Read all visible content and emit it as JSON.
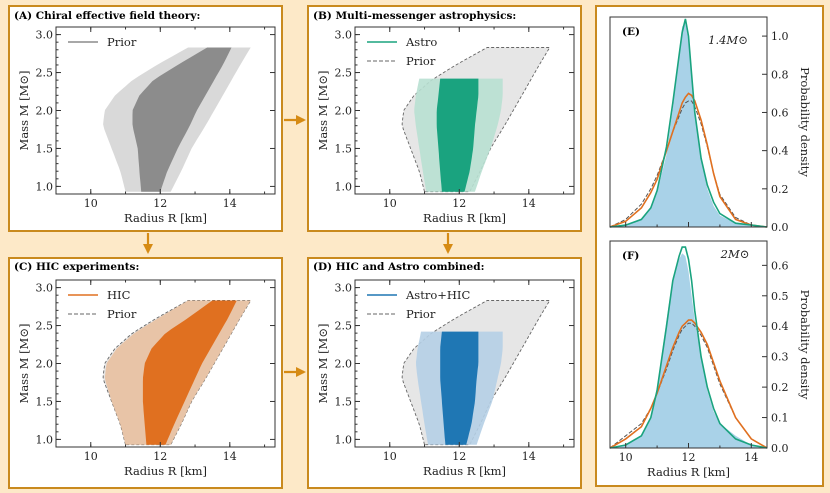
{
  "colors": {
    "background": "#fde9c8",
    "panel_border": "#c98a1e",
    "arrow": "#d68b14",
    "prior_inner": "#8c8c8c",
    "prior_outer": "#d9d9d9",
    "astro": "#1aa37f",
    "astro_light": "#b8e0d2",
    "hic": "#e07020",
    "hic_light": "#e8c0a0",
    "combined": "#1f77b4",
    "combined_light": "#b5cfe6",
    "hist": "#a9d2e8",
    "green_curve": "#1aa37f",
    "orange_curve": "#e07020"
  },
  "chart_data": [
    {
      "id": "A",
      "type": "area",
      "title": "(A) Chiral effective field theory:",
      "xlabel": "Radius R [km]",
      "ylabel": "Mass M [M⊙]",
      "xlim": [
        9,
        15.3
      ],
      "ylim": [
        0.9,
        3.1
      ],
      "xticks": [
        "10",
        "12",
        "14"
      ],
      "yticks": [
        "1.0",
        "1.5",
        "2.0",
        "2.5",
        "3.0"
      ],
      "legend": [
        {
          "label": "Prior",
          "style": "solid-line"
        }
      ],
      "bands": [
        {
          "name": "Prior 95%",
          "mmax": 2.83,
          "left": [
            [
              0.93,
              11.0
            ],
            [
              1.2,
              10.85
            ],
            [
              1.5,
              10.6
            ],
            [
              1.8,
              10.35
            ],
            [
              2.0,
              10.4
            ],
            [
              2.2,
              10.7
            ],
            [
              2.4,
              11.2
            ],
            [
              2.6,
              11.9
            ],
            [
              2.83,
              12.8
            ]
          ],
          "right": [
            [
              0.93,
              12.3
            ],
            [
              1.2,
              12.6
            ],
            [
              1.5,
              12.9
            ],
            [
              1.8,
              13.3
            ],
            [
              2.0,
              13.55
            ],
            [
              2.2,
              13.8
            ],
            [
              2.4,
              14.05
            ],
            [
              2.6,
              14.3
            ],
            [
              2.83,
              14.6
            ]
          ]
        },
        {
          "name": "Prior 68%",
          "mmax": 2.83,
          "left": [
            [
              0.93,
              11.45
            ],
            [
              1.2,
              11.4
            ],
            [
              1.5,
              11.35
            ],
            [
              1.8,
              11.2
            ],
            [
              2.0,
              11.2
            ],
            [
              2.2,
              11.4
            ],
            [
              2.4,
              11.8
            ],
            [
              2.6,
              12.5
            ],
            [
              2.83,
              13.35
            ]
          ],
          "right": [
            [
              0.93,
              12.0
            ],
            [
              1.2,
              12.2
            ],
            [
              1.5,
              12.5
            ],
            [
              1.8,
              12.85
            ],
            [
              2.0,
              13.05
            ],
            [
              2.2,
              13.3
            ],
            [
              2.4,
              13.55
            ],
            [
              2.6,
              13.8
            ],
            [
              2.83,
              14.05
            ]
          ]
        }
      ]
    },
    {
      "id": "B",
      "type": "area",
      "title": "(B) Multi-messenger astrophysics:",
      "xlabel": "Radius R [km]",
      "ylabel": "Mass M [M⊙]",
      "xlim": [
        9,
        15.3
      ],
      "ylim": [
        0.9,
        3.1
      ],
      "xticks": [
        "10",
        "12",
        "14"
      ],
      "yticks": [
        "1.0",
        "1.5",
        "2.0",
        "2.5",
        "3.0"
      ],
      "legend": [
        {
          "label": "Astro",
          "style": "solid-line"
        },
        {
          "label": "Prior",
          "style": "dashed-line"
        }
      ],
      "bands": [
        {
          "name": "Astro 95%",
          "mmax": 2.42,
          "left": [
            [
              0.93,
              11.05
            ],
            [
              1.2,
              10.95
            ],
            [
              1.5,
              10.85
            ],
            [
              1.8,
              10.75
            ],
            [
              2.0,
              10.7
            ],
            [
              2.2,
              10.75
            ],
            [
              2.42,
              10.85
            ]
          ],
          "right": [
            [
              0.93,
              12.45
            ],
            [
              1.2,
              12.65
            ],
            [
              1.5,
              12.9
            ],
            [
              1.8,
              13.1
            ],
            [
              2.0,
              13.2
            ],
            [
              2.2,
              13.25
            ],
            [
              2.42,
              13.25
            ]
          ]
        },
        {
          "name": "Astro 68%",
          "mmax": 2.42,
          "left": [
            [
              0.93,
              11.5
            ],
            [
              1.2,
              11.45
            ],
            [
              1.5,
              11.4
            ],
            [
              1.8,
              11.35
            ],
            [
              2.0,
              11.35
            ],
            [
              2.2,
              11.4
            ],
            [
              2.42,
              11.45
            ]
          ],
          "right": [
            [
              0.93,
              12.15
            ],
            [
              1.2,
              12.3
            ],
            [
              1.5,
              12.4
            ],
            [
              1.8,
              12.45
            ],
            [
              2.0,
              12.5
            ],
            [
              2.2,
              12.55
            ],
            [
              2.42,
              12.55
            ]
          ]
        }
      ]
    },
    {
      "id": "C",
      "type": "area",
      "title": "(C) HIC experiments:",
      "xlabel": "Radius R [km]",
      "ylabel": "Mass M [M⊙]",
      "xlim": [
        9,
        15.3
      ],
      "ylim": [
        0.9,
        3.1
      ],
      "xticks": [
        "10",
        "12",
        "14"
      ],
      "yticks": [
        "1.0",
        "1.5",
        "2.0",
        "2.5",
        "3.0"
      ],
      "legend": [
        {
          "label": "HIC",
          "style": "solid-line"
        },
        {
          "label": "Prior",
          "style": "dashed-line"
        }
      ],
      "bands": [
        {
          "name": "HIC 95%",
          "mmax": 2.83,
          "left": [
            [
              0.93,
              11.0
            ],
            [
              1.2,
              10.85
            ],
            [
              1.5,
              10.6
            ],
            [
              1.8,
              10.4
            ],
            [
              2.0,
              10.45
            ],
            [
              2.2,
              10.75
            ],
            [
              2.4,
              11.25
            ],
            [
              2.6,
              11.95
            ],
            [
              2.83,
              12.8
            ]
          ],
          "right": [
            [
              0.93,
              12.3
            ],
            [
              1.2,
              12.6
            ],
            [
              1.5,
              12.9
            ],
            [
              1.8,
              13.3
            ],
            [
              2.0,
              13.55
            ],
            [
              2.2,
              13.8
            ],
            [
              2.4,
              14.05
            ],
            [
              2.6,
              14.3
            ],
            [
              2.83,
              14.6
            ]
          ]
        },
        {
          "name": "HIC 68%",
          "mmax": 2.83,
          "left": [
            [
              0.93,
              11.6
            ],
            [
              1.2,
              11.55
            ],
            [
              1.5,
              11.5
            ],
            [
              1.8,
              11.5
            ],
            [
              2.0,
              11.55
            ],
            [
              2.2,
              11.75
            ],
            [
              2.4,
              12.15
            ],
            [
              2.6,
              12.8
            ],
            [
              2.83,
              13.5
            ]
          ],
          "right": [
            [
              0.93,
              12.15
            ],
            [
              1.2,
              12.4
            ],
            [
              1.5,
              12.7
            ],
            [
              1.8,
              13.0
            ],
            [
              2.0,
              13.2
            ],
            [
              2.2,
              13.45
            ],
            [
              2.4,
              13.7
            ],
            [
              2.6,
              13.95
            ],
            [
              2.83,
              14.2
            ]
          ]
        }
      ]
    },
    {
      "id": "D",
      "type": "area",
      "title": "(D) HIC and Astro combined:",
      "xlabel": "Radius R [km]",
      "ylabel": "Mass M [M⊙]",
      "xlim": [
        9,
        15.3
      ],
      "ylim": [
        0.9,
        3.1
      ],
      "xticks": [
        "10",
        "12",
        "14"
      ],
      "yticks": [
        "1.0",
        "1.5",
        "2.0",
        "2.5",
        "3.0"
      ],
      "legend": [
        {
          "label": "Astro+HIC",
          "style": "solid-line"
        },
        {
          "label": "Prior",
          "style": "dashed-line"
        }
      ],
      "bands": [
        {
          "name": "Astro+HIC 95%",
          "mmax": 2.42,
          "left": [
            [
              0.93,
              11.1
            ],
            [
              1.2,
              11.0
            ],
            [
              1.5,
              10.9
            ],
            [
              1.8,
              10.8
            ],
            [
              2.0,
              10.75
            ],
            [
              2.2,
              10.8
            ],
            [
              2.42,
              10.9
            ]
          ],
          "right": [
            [
              0.93,
              12.5
            ],
            [
              1.2,
              12.7
            ],
            [
              1.5,
              12.95
            ],
            [
              1.8,
              13.1
            ],
            [
              2.0,
              13.2
            ],
            [
              2.2,
              13.25
            ],
            [
              2.42,
              13.25
            ]
          ]
        },
        {
          "name": "Astro+HIC 68%",
          "mmax": 2.42,
          "left": [
            [
              0.93,
              11.6
            ],
            [
              1.2,
              11.55
            ],
            [
              1.5,
              11.5
            ],
            [
              1.8,
              11.45
            ],
            [
              2.0,
              11.45
            ],
            [
              2.2,
              11.45
            ],
            [
              2.42,
              11.5
            ]
          ],
          "right": [
            [
              0.93,
              12.2
            ],
            [
              1.2,
              12.35
            ],
            [
              1.5,
              12.45
            ],
            [
              1.8,
              12.5
            ],
            [
              2.0,
              12.55
            ],
            [
              2.2,
              12.55
            ],
            [
              2.42,
              12.55
            ]
          ]
        }
      ]
    },
    {
      "id": "E",
      "type": "area",
      "title": "(E)",
      "annotation": "1.4M⊙",
      "xlabel": "",
      "ylabel": "Probability density",
      "xlim": [
        9.5,
        14.5
      ],
      "ylim": [
        0,
        1.1
      ],
      "xticks": [],
      "yticks": [
        "0.0",
        "0.2",
        "0.4",
        "0.6",
        "0.8",
        "1.0"
      ],
      "x": [
        9.5,
        10.0,
        10.5,
        10.8,
        11.0,
        11.3,
        11.5,
        11.7,
        11.8,
        11.9,
        12.0,
        12.1,
        12.2,
        12.4,
        12.6,
        12.8,
        13.0,
        13.5,
        14.0,
        14.5
      ],
      "series": [
        {
          "name": "histogram (Astro+HIC)",
          "values": [
            0,
            0.01,
            0.04,
            0.1,
            0.18,
            0.38,
            0.62,
            0.92,
            1.05,
            1.07,
            0.98,
            0.8,
            0.62,
            0.36,
            0.2,
            0.11,
            0.06,
            0.02,
            0.005,
            0
          ]
        },
        {
          "name": "Astro (green)",
          "values": [
            0,
            0.01,
            0.04,
            0.1,
            0.19,
            0.42,
            0.65,
            0.9,
            1.02,
            1.09,
            1.0,
            0.8,
            0.6,
            0.36,
            0.22,
            0.13,
            0.07,
            0.02,
            0.01,
            0
          ]
        },
        {
          "name": "HIC (orange)",
          "values": [
            0,
            0.03,
            0.1,
            0.18,
            0.25,
            0.4,
            0.5,
            0.6,
            0.65,
            0.68,
            0.7,
            0.69,
            0.66,
            0.56,
            0.43,
            0.28,
            0.16,
            0.04,
            0.01,
            0
          ]
        },
        {
          "name": "Prior (dashed)",
          "values": [
            0,
            0.04,
            0.12,
            0.2,
            0.27,
            0.4,
            0.5,
            0.58,
            0.62,
            0.65,
            0.66,
            0.66,
            0.63,
            0.54,
            0.42,
            0.28,
            0.17,
            0.05,
            0.01,
            0
          ]
        }
      ]
    },
    {
      "id": "F",
      "type": "area",
      "title": "(F)",
      "annotation": "2M⊙",
      "xlabel": "Radius R [km]",
      "ylabel": "Probability density",
      "xlim": [
        9.5,
        14.5
      ],
      "ylim": [
        0,
        0.68
      ],
      "xticks": [
        "10",
        "12",
        "14"
      ],
      "yticks": [
        "0.0",
        "0.1",
        "0.2",
        "0.3",
        "0.4",
        "0.5",
        "0.6"
      ],
      "x": [
        9.5,
        10.0,
        10.5,
        10.8,
        11.0,
        11.3,
        11.5,
        11.7,
        11.8,
        11.9,
        12.0,
        12.1,
        12.2,
        12.4,
        12.6,
        12.8,
        13.0,
        13.5,
        14.0,
        14.5
      ],
      "series": [
        {
          "name": "histogram (Astro+HIC)",
          "values": [
            0,
            0.01,
            0.04,
            0.1,
            0.2,
            0.42,
            0.56,
            0.62,
            0.64,
            0.63,
            0.58,
            0.5,
            0.42,
            0.3,
            0.19,
            0.12,
            0.08,
            0.04,
            0.01,
            0
          ]
        },
        {
          "name": "Astro (green)",
          "values": [
            0,
            0.01,
            0.04,
            0.1,
            0.19,
            0.4,
            0.55,
            0.63,
            0.66,
            0.66,
            0.62,
            0.55,
            0.45,
            0.3,
            0.2,
            0.13,
            0.08,
            0.03,
            0.01,
            0
          ]
        },
        {
          "name": "HIC (orange)",
          "values": [
            0,
            0.03,
            0.07,
            0.13,
            0.18,
            0.27,
            0.33,
            0.38,
            0.4,
            0.41,
            0.42,
            0.42,
            0.41,
            0.38,
            0.34,
            0.28,
            0.22,
            0.1,
            0.03,
            0
          ]
        },
        {
          "name": "Prior (dashed)",
          "values": [
            0,
            0.04,
            0.08,
            0.13,
            0.18,
            0.26,
            0.32,
            0.37,
            0.39,
            0.4,
            0.41,
            0.41,
            0.4,
            0.37,
            0.33,
            0.27,
            0.21,
            0.1,
            0.03,
            0
          ]
        }
      ]
    }
  ]
}
